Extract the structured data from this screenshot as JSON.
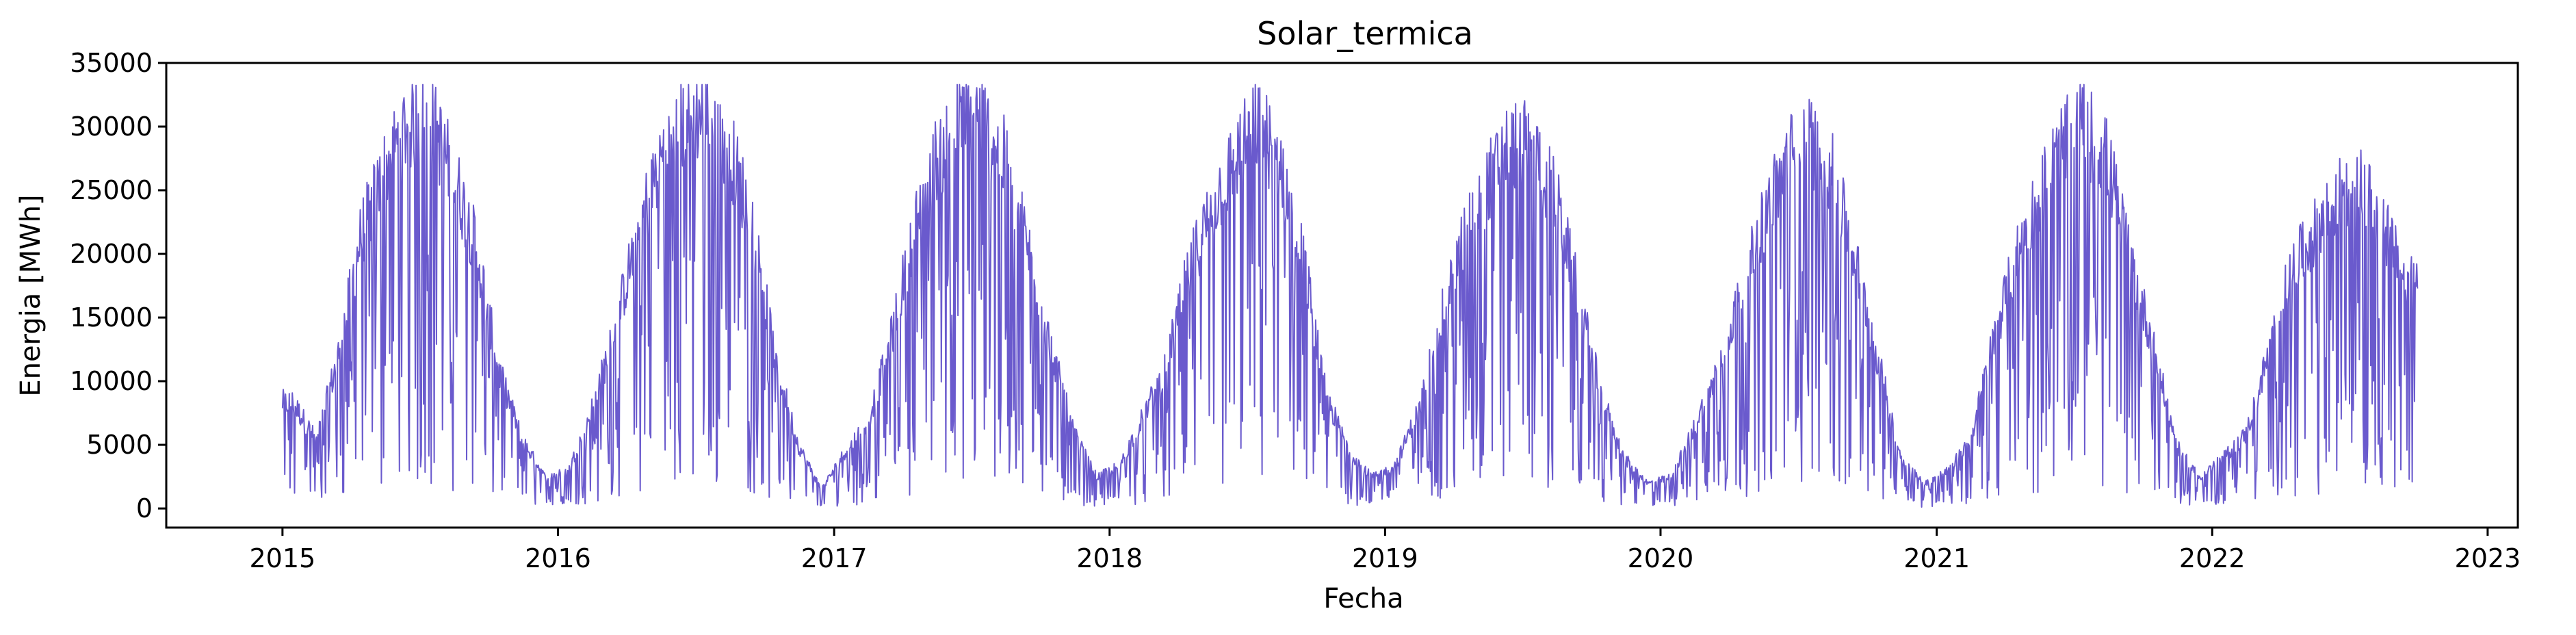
{
  "chart_data": {
    "type": "line",
    "title": "Solar_termica",
    "xlabel": "Fecha",
    "ylabel": "Energia [MWh]",
    "xlim": [
      "2014-07-31",
      "2023-02-10"
    ],
    "ylim": [
      -1500,
      35000
    ],
    "x_ticks": [
      "2015",
      "2016",
      "2017",
      "2018",
      "2019",
      "2020",
      "2021",
      "2022",
      "2023"
    ],
    "y_ticks": [
      "0",
      "5000",
      "10000",
      "15000",
      "20000",
      "25000",
      "30000",
      "35000"
    ],
    "grid": false,
    "line_color": "#6a5acd",
    "date_range": [
      "2015-01-01",
      "2022-09-30"
    ],
    "series": [
      {
        "sampling": "monthly approximate level",
        "x": [
          "2015-01",
          "2015-02",
          "2015-03",
          "2015-04",
          "2015-05",
          "2015-06",
          "2015-07",
          "2015-08",
          "2015-09",
          "2015-10",
          "2015-11",
          "2015-12",
          "2016-01",
          "2016-02",
          "2016-03",
          "2016-04",
          "2016-05",
          "2016-06",
          "2016-07",
          "2016-08",
          "2016-09",
          "2016-10",
          "2016-11",
          "2016-12",
          "2017-01",
          "2017-02",
          "2017-03",
          "2017-04",
          "2017-05",
          "2017-06",
          "2017-07",
          "2017-08",
          "2017-09",
          "2017-10",
          "2017-11",
          "2017-12",
          "2018-01",
          "2018-02",
          "2018-03",
          "2018-04",
          "2018-05",
          "2018-06",
          "2018-07",
          "2018-08",
          "2018-09",
          "2018-10",
          "2018-11",
          "2018-12",
          "2019-01",
          "2019-02",
          "2019-03",
          "2019-04",
          "2019-05",
          "2019-06",
          "2019-07",
          "2019-08",
          "2019-09",
          "2019-10",
          "2019-11",
          "2019-12",
          "2020-01",
          "2020-02",
          "2020-03",
          "2020-04",
          "2020-05",
          "2020-06",
          "2020-07",
          "2020-08",
          "2020-09",
          "2020-10",
          "2020-11",
          "2020-12",
          "2021-01",
          "2021-02",
          "2021-03",
          "2021-04",
          "2021-05",
          "2021-06",
          "2021-07",
          "2021-08",
          "2021-09",
          "2021-10",
          "2021-11",
          "2021-12",
          "2022-01",
          "2022-02",
          "2022-03",
          "2022-04",
          "2022-05",
          "2022-06",
          "2022-07",
          "2022-08",
          "2022-09"
        ],
        "y": [
          8500,
          5500,
          12000,
          22000,
          27000,
          31000,
          31500,
          27000,
          21000,
          11000,
          5500,
          2500,
          3000,
          8000,
          14000,
          22000,
          28000,
          31000,
          32000,
          29000,
          23000,
          12000,
          5000,
          1500,
          4500,
          7000,
          13000,
          22000,
          28000,
          31000,
          31500,
          28000,
          21000,
          13000,
          6000,
          2500,
          3500,
          7500,
          11000,
          19000,
          24000,
          28000,
          31000,
          28000,
          20000,
          9000,
          4500,
          2500,
          3500,
          8000,
          15000,
          22000,
          26000,
          29500,
          29000,
          25000,
          17000,
          9000,
          4000,
          2000,
          2500,
          6500,
          11000,
          17000,
          23000,
          28000,
          30000,
          27000,
          20000,
          12000,
          4000,
          2000,
          3000,
          5500,
          13000,
          20000,
          25000,
          29000,
          31000,
          28000,
          20000,
          13000,
          5000,
          2500,
          4000,
          6000,
          12000,
          19000,
          22000,
          25000,
          26000,
          23000,
          18000
        ]
      }
    ]
  }
}
